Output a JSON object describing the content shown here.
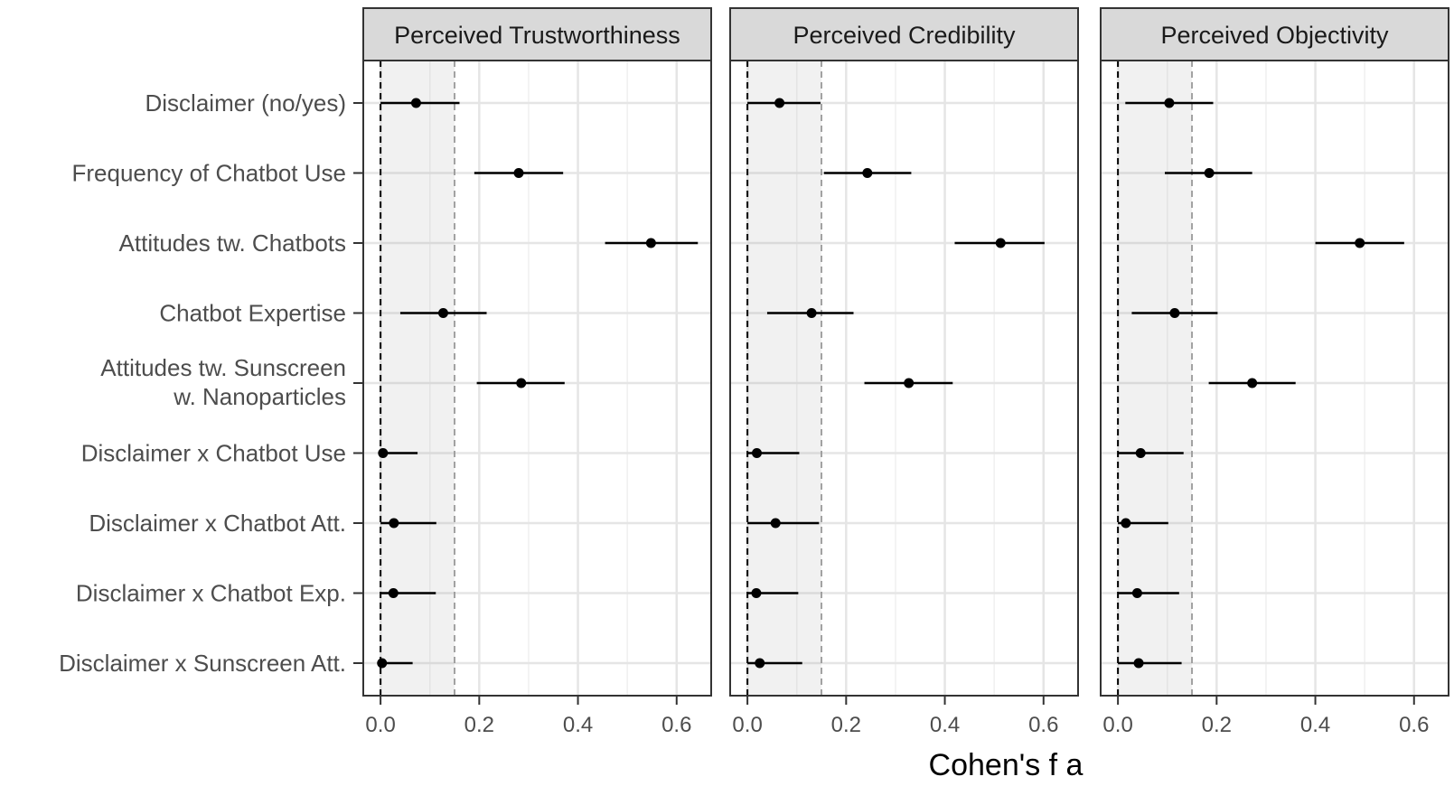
{
  "chart_data": {
    "type": "forest",
    "xlabel": "Cohen's f a",
    "xlim": [
      -0.035,
      0.67
    ],
    "x_ticks": [
      0.0,
      0.2,
      0.4,
      0.6
    ],
    "x_tick_labels": [
      "0.0",
      "0.2",
      "0.4",
      "0.6"
    ],
    "reference_lines": {
      "zero": 0.0,
      "small_effect": 0.15
    },
    "shaded_region": [
      0.0,
      0.15
    ],
    "grid": true,
    "categories": [
      "Disclaimer (no/yes)",
      "Frequency of Chatbot Use",
      "Attitudes tw. Chatbots",
      "Chatbot Expertise",
      "Attitudes tw. Sunscreen\nw. Nanoparticles",
      "Disclaimer x Chatbot Use",
      "Disclaimer x Chatbot Att.",
      "Disclaimer x Chatbot Exp.",
      "Disclaimer x Sunscreen Att."
    ],
    "panels": [
      {
        "title": "Perceived Trustworthiness",
        "estimates": [
          0.072,
          0.28,
          0.548,
          0.127,
          0.285,
          0.005,
          0.027,
          0.026,
          0.003
        ],
        "ci_low": [
          0.0,
          0.19,
          0.455,
          0.04,
          0.195,
          0.0,
          0.0,
          0.0,
          0.0
        ],
        "ci_high": [
          0.16,
          0.37,
          0.643,
          0.215,
          0.373,
          0.075,
          0.113,
          0.112,
          0.065
        ]
      },
      {
        "title": "Perceived Credibility",
        "estimates": [
          0.065,
          0.243,
          0.513,
          0.13,
          0.327,
          0.019,
          0.057,
          0.018,
          0.025
        ],
        "ci_low": [
          0.0,
          0.155,
          0.42,
          0.04,
          0.237,
          0.0,
          0.0,
          0.0,
          0.0
        ],
        "ci_high": [
          0.148,
          0.332,
          0.602,
          0.215,
          0.416,
          0.105,
          0.145,
          0.103,
          0.111
        ]
      },
      {
        "title": "Perceived Objectivity",
        "estimates": [
          0.104,
          0.185,
          0.49,
          0.115,
          0.272,
          0.046,
          0.016,
          0.039,
          0.042
        ],
        "ci_low": [
          0.015,
          0.095,
          0.4,
          0.028,
          0.184,
          0.0,
          0.0,
          0.0,
          0.0
        ],
        "ci_high": [
          0.193,
          0.272,
          0.58,
          0.202,
          0.36,
          0.133,
          0.102,
          0.124,
          0.129
        ]
      }
    ]
  }
}
